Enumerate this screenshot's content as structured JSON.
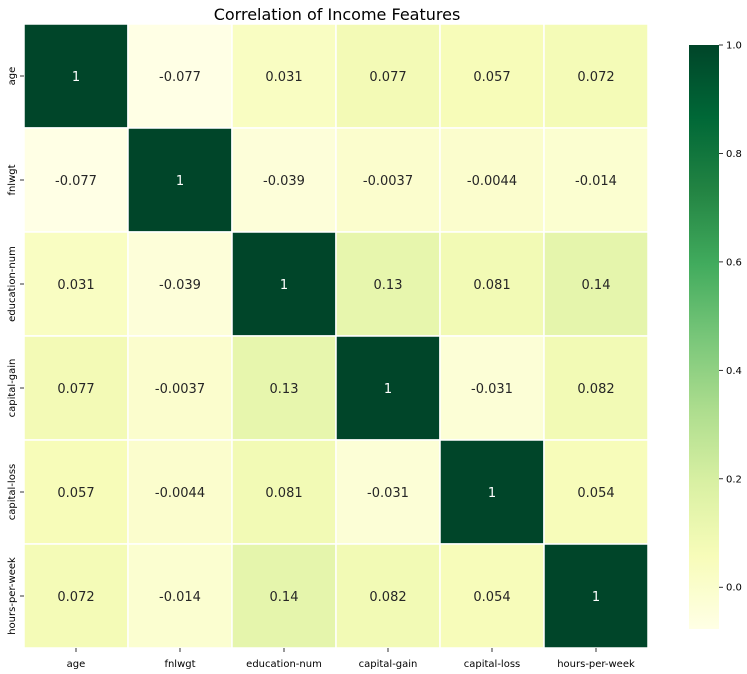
{
  "chart_data": {
    "type": "heatmap",
    "title": "Correlation of Income Features",
    "xlabel": "",
    "ylabel": "",
    "x_labels": [
      "age",
      "fnlwgt",
      "education-num",
      "capital-gain",
      "capital-loss",
      "hours-per-week"
    ],
    "y_labels": [
      "age",
      "fnlwgt",
      "education-num",
      "capital-gain",
      "capital-loss",
      "hours-per-week"
    ],
    "values": [
      [
        1,
        -0.077,
        0.031,
        0.077,
        0.057,
        0.072
      ],
      [
        -0.077,
        1,
        -0.039,
        -0.0037,
        -0.0044,
        -0.014
      ],
      [
        0.031,
        -0.039,
        1,
        0.13,
        0.081,
        0.14
      ],
      [
        0.077,
        -0.0037,
        0.13,
        1,
        -0.031,
        0.082
      ],
      [
        0.057,
        -0.0044,
        0.081,
        -0.031,
        1,
        0.054
      ],
      [
        0.072,
        -0.014,
        0.14,
        0.082,
        0.054,
        1
      ]
    ],
    "annotations": [
      [
        "1",
        "-0.077",
        "0.031",
        "0.077",
        "0.057",
        "0.072"
      ],
      [
        "-0.077",
        "1",
        "-0.039",
        "-0.0037",
        "-0.0044",
        "-0.014"
      ],
      [
        "0.031",
        "-0.039",
        "1",
        "0.13",
        "0.081",
        "0.14"
      ],
      [
        "0.077",
        "-0.0037",
        "0.13",
        "1",
        "-0.031",
        "0.082"
      ],
      [
        "0.057",
        "-0.0044",
        "0.081",
        "-0.031",
        "1",
        "0.054"
      ],
      [
        "0.072",
        "-0.014",
        "0.14",
        "0.082",
        "0.054",
        "1"
      ]
    ],
    "colormap": "YlGn",
    "colormap_stops": [
      "#ffffe5",
      "#f7fcb9",
      "#d9f0a3",
      "#addd8e",
      "#78c679",
      "#41ab5d",
      "#238443",
      "#006837",
      "#004529"
    ],
    "vmin": -0.077,
    "vmax": 1.0,
    "colorbar_ticks": [
      0.0,
      0.2,
      0.4,
      0.6,
      0.8,
      1.0
    ],
    "colorbar_tick_labels": [
      "0.0",
      "0.2",
      "0.4",
      "0.6",
      "0.8",
      "1.0"
    ],
    "grid": true,
    "legend": "colorbar-right",
    "annotation_colors": {
      "dark": "#262626",
      "light": "#ffffff"
    },
    "cell_line_color": "#ffffff"
  }
}
